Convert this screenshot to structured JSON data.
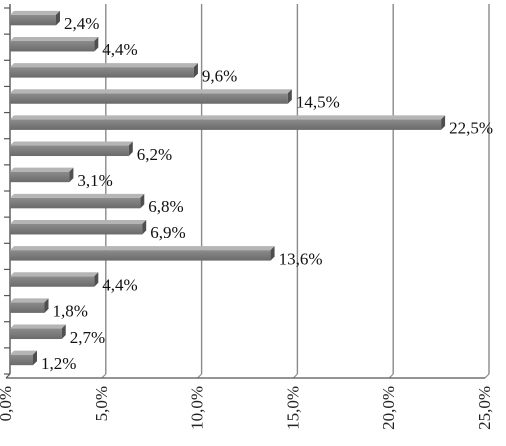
{
  "chart_data": {
    "type": "bar",
    "orientation": "horizontal",
    "title": "",
    "xlabel": "",
    "ylabel": "",
    "xlim": [
      0,
      25
    ],
    "x_ticks": [
      "0,0%",
      "5,0%",
      "10,0%",
      "15,0%",
      "20,0%",
      "25,0%"
    ],
    "values": [
      2.4,
      4.4,
      9.6,
      14.5,
      22.5,
      6.2,
      3.1,
      6.8,
      6.9,
      13.6,
      4.4,
      1.8,
      2.7,
      1.2
    ],
    "data_labels": [
      "2,4%",
      "4,4%",
      "9,6%",
      "14,5%",
      "22,5%",
      "6,2%",
      "3,1%",
      "6,8%",
      "6,9%",
      "13,6%",
      "4,4%",
      "1,8%",
      "2,7%",
      "1,2%"
    ],
    "grid": true,
    "legend": "none",
    "bar_color": "#7a7a7a"
  }
}
